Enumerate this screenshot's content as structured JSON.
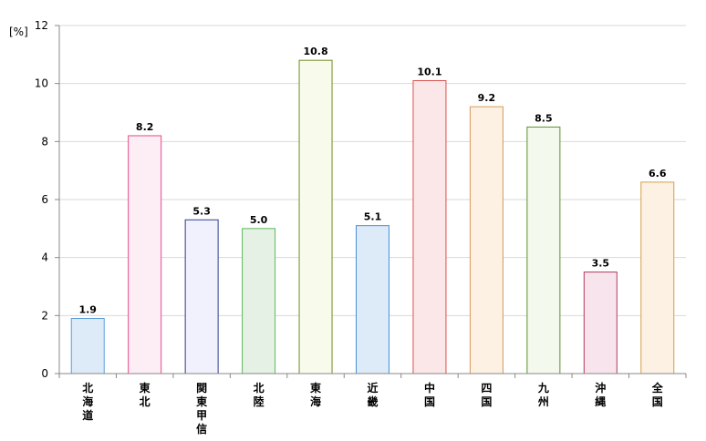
{
  "chart_data": {
    "type": "bar",
    "title": "",
    "xlabel": "",
    "ylabel": "[%]",
    "ylim": [
      0,
      12
    ],
    "yticks": [
      0,
      2,
      4,
      6,
      8,
      10,
      12
    ],
    "grid": true,
    "legend": "none",
    "categories": [
      "北海道",
      "東北",
      "関東甲信",
      "北陸",
      "東海",
      "近畿",
      "中国",
      "四国",
      "九州",
      "沖縄",
      "全国"
    ],
    "values": [
      1.9,
      8.2,
      5.3,
      5.0,
      10.8,
      5.1,
      10.1,
      9.2,
      8.5,
      3.5,
      6.6
    ],
    "value_labels": [
      "1.9",
      "8.2",
      "5.3",
      "5.0",
      "10.8",
      "5.1",
      "10.1",
      "9.2",
      "8.5",
      "3.5",
      "6.6"
    ],
    "bar_styles": [
      {
        "fill": "#ddeaf7",
        "stroke": "#5b9bd5"
      },
      {
        "fill": "#fdeef5",
        "stroke": "#e6488a"
      },
      {
        "fill": "#f0f1fc",
        "stroke": "#2e3a8c"
      },
      {
        "fill": "#e4f1e4",
        "stroke": "#5cb85c"
      },
      {
        "fill": "#f8fbec",
        "stroke": "#6b8e23"
      },
      {
        "fill": "#ddeaf7",
        "stroke": "#4a90d9"
      },
      {
        "fill": "#fbe6e8",
        "stroke": "#d9534f"
      },
      {
        "fill": "#fdf1e4",
        "stroke": "#d49a5a"
      },
      {
        "fill": "#f3f9ec",
        "stroke": "#5e8f2e"
      },
      {
        "fill": "#f8e4ec",
        "stroke": "#b03a5c"
      },
      {
        "fill": "#fdf1e4",
        "stroke": "#d4a04a"
      }
    ],
    "colors": {
      "grid": "#d9d9d9",
      "axis": "#888888"
    }
  }
}
